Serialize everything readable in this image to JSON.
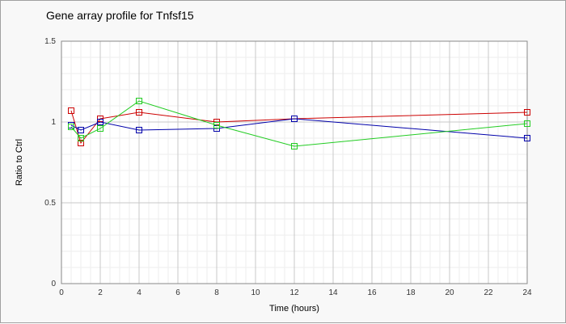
{
  "chart_data": {
    "type": "line",
    "title": "Gene array profile for Tnfsf15",
    "xlabel": "Time (hours)",
    "ylabel": "Ratio to Ctrl",
    "xlim": [
      0,
      24
    ],
    "ylim": [
      0,
      1.5
    ],
    "x_ticks": [
      "0",
      "2",
      "4",
      "6",
      "8",
      "10",
      "12",
      "14",
      "16",
      "18",
      "20",
      "22",
      "24"
    ],
    "y_ticks": [
      "0",
      "0.5",
      "1",
      "1.5"
    ],
    "grid": true,
    "legend": "none",
    "series": [
      {
        "color": "#cc0000",
        "x": [
          0.5,
          1,
          2,
          4,
          8,
          12,
          24
        ],
        "values": [
          1.07,
          0.87,
          1.02,
          1.06,
          1.0,
          1.02,
          1.06
        ]
      },
      {
        "color": "#0000aa",
        "x": [
          0.5,
          1,
          2,
          4,
          8,
          12,
          24
        ],
        "values": [
          0.98,
          0.95,
          1.0,
          0.95,
          0.96,
          1.02,
          0.9
        ]
      },
      {
        "color": "#22cc22",
        "x": [
          0.5,
          1,
          2,
          4,
          8,
          12,
          24
        ],
        "values": [
          0.97,
          0.9,
          0.96,
          1.13,
          0.98,
          0.85,
          0.99
        ]
      }
    ]
  }
}
